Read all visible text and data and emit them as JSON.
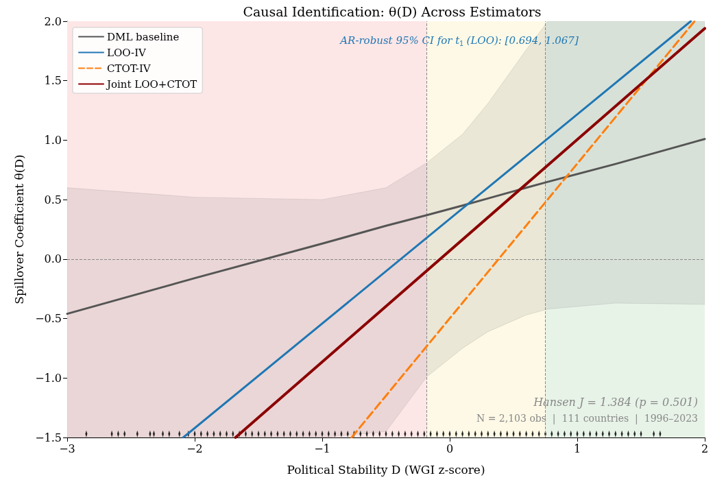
{
  "chart_data": {
    "type": "line",
    "title": "Causal Identification: θ(D) Across Estimators",
    "xlabel": "Political Stability D (WGI z-score)",
    "ylabel": "Spillover Coefficient θ(D)",
    "annotations": [
      "AR-robust 95% CI for t$_{1}$ (LOO): [0.694, 1.067]",
      "Hansen J = 1.384 (p = 0.501)",
      "N = 2,103 obs  |  111 countries  |  1996–2023"
    ],
    "xlim": [
      -3,
      2
    ],
    "ylim": [
      -1.5,
      2
    ],
    "xticks": [
      {
        "value": -3,
        "label": "−3"
      },
      {
        "value": -2,
        "label": "−2"
      },
      {
        "value": -1,
        "label": "−1"
      },
      0,
      1,
      2
    ],
    "yticks": [
      {
        "value": -1.5,
        "label": "−1.5"
      },
      {
        "value": -1,
        "label": "−1.0"
      },
      {
        "value": -0.5,
        "label": "−0.5"
      },
      {
        "value": 0,
        "label": "0.0"
      },
      {
        "value": 0.5,
        "label": "0.5"
      },
      {
        "value": 1,
        "label": "1.0"
      },
      {
        "value": 1.5,
        "label": "1.5"
      },
      {
        "value": 2,
        "label": "2.0"
      }
    ],
    "grid": false,
    "legend": "top left",
    "bands": [
      {
        "axis": "x",
        "from": -3,
        "to": -0.18,
        "color": "#fde6e6"
      },
      {
        "axis": "x",
        "from": -0.18,
        "to": 0.75,
        "color": "#fdf9e6"
      },
      {
        "axis": "x",
        "from": 0.75,
        "to": 2,
        "color": "#e8f3e8"
      }
    ],
    "ref_lines": [
      {
        "axis": "x",
        "value": -0.18,
        "color": "#888888",
        "line_style": "dashed"
      },
      {
        "axis": "x",
        "value": 0.75,
        "color": "#888888",
        "line_style": "dashed"
      },
      {
        "axis": "y",
        "value": 0,
        "color": "#888888",
        "line_style": "dashed"
      }
    ],
    "series": [
      {
        "name": "DML baseline",
        "color": "#555555",
        "x": [
          -3,
          -2,
          -1,
          -0.5,
          -0.18,
          0.1,
          0.3,
          0.6,
          0.77,
          1.3,
          2
        ],
        "values": [
          -0.46,
          -0.16,
          0.13,
          0.28,
          0.37,
          0.45,
          0.51,
          0.6,
          0.65,
          0.8,
          1.01
        ],
        "upper": [
          0.6,
          0.52,
          0.5,
          0.6,
          0.81,
          1.05,
          1.31,
          1.76,
          2.0,
          2.0,
          2.0
        ],
        "lower": [
          -1.5,
          -1.5,
          -1.5,
          -1.45,
          -0.99,
          -0.75,
          -0.61,
          -0.47,
          -0.42,
          -0.37,
          -0.38
        ]
      },
      {
        "name": "LOO-IV",
        "color": "#1f77b4",
        "x": [
          -2.09,
          1.89
        ],
        "values": [
          -1.5,
          2.0
        ]
      },
      {
        "name": "CTOT-IV",
        "color": "#ff7f0e",
        "line_style": "dashed",
        "x": [
          -0.77,
          1.92
        ],
        "values": [
          -1.5,
          2.0
        ]
      },
      {
        "name": "Joint LOO+CTOT",
        "color": "#8b0000",
        "x": [
          -1.68,
          2
        ],
        "values": [
          -1.5,
          1.94
        ]
      },
      {
        "type": "scatter",
        "color": "#000000",
        "x": [
          -2.85,
          -2.65,
          -2.6,
          -2.55,
          -2.45,
          -2.35,
          -2.32,
          -2.25,
          -2.2,
          -2.12,
          -2.05,
          -2.0,
          -1.95,
          -1.9,
          -1.85,
          -1.8,
          -1.75,
          -1.7,
          -1.65,
          -1.6,
          -1.55,
          -1.5,
          -1.45,
          -1.4,
          -1.35,
          -1.3,
          -1.25,
          -1.2,
          -1.15,
          -1.1,
          -1.05,
          -1.0,
          -0.95,
          -0.9,
          -0.85,
          -0.8,
          -0.75,
          -0.7,
          -0.65,
          -0.6,
          -0.55,
          -0.5,
          -0.45,
          -0.4,
          -0.35,
          -0.3,
          -0.25,
          -0.2,
          -0.15,
          -0.1,
          -0.05,
          0,
          0.05,
          0.1,
          0.15,
          0.2,
          0.25,
          0.3,
          0.35,
          0.4,
          0.45,
          0.5,
          0.55,
          0.6,
          0.65,
          0.7,
          0.75,
          0.8,
          0.85,
          0.9,
          0.95,
          1.0,
          1.05,
          1.1,
          1.15,
          1.2,
          1.25,
          1.3,
          1.35,
          1.4,
          1.45,
          1.5,
          1.6,
          1.65
        ],
        "values": [
          -1.47,
          -1.47,
          -1.47,
          -1.47,
          -1.47,
          -1.47,
          -1.47,
          -1.47,
          -1.47,
          -1.47,
          -1.47,
          -1.47,
          -1.47,
          -1.47,
          -1.47,
          -1.47,
          -1.47,
          -1.47,
          -1.47,
          -1.47,
          -1.47,
          -1.47,
          -1.47,
          -1.47,
          -1.47,
          -1.47,
          -1.47,
          -1.47,
          -1.47,
          -1.47,
          -1.47,
          -1.47,
          -1.47,
          -1.47,
          -1.47,
          -1.47,
          -1.47,
          -1.47,
          -1.47,
          -1.47,
          -1.47,
          -1.47,
          -1.47,
          -1.47,
          -1.47,
          -1.47,
          -1.47,
          -1.47,
          -1.47,
          -1.47,
          -1.47,
          -1.47,
          -1.47,
          -1.47,
          -1.47,
          -1.47,
          -1.47,
          -1.47,
          -1.47,
          -1.47,
          -1.47,
          -1.47,
          -1.47,
          -1.47,
          -1.47,
          -1.47,
          -1.47,
          -1.47,
          -1.47,
          -1.47,
          -1.47,
          -1.47,
          -1.47,
          -1.47,
          -1.47,
          -1.47,
          -1.47,
          -1.47,
          -1.47,
          -1.47,
          -1.47,
          -1.47,
          -1.47,
          -1.47
        ]
      }
    ]
  }
}
